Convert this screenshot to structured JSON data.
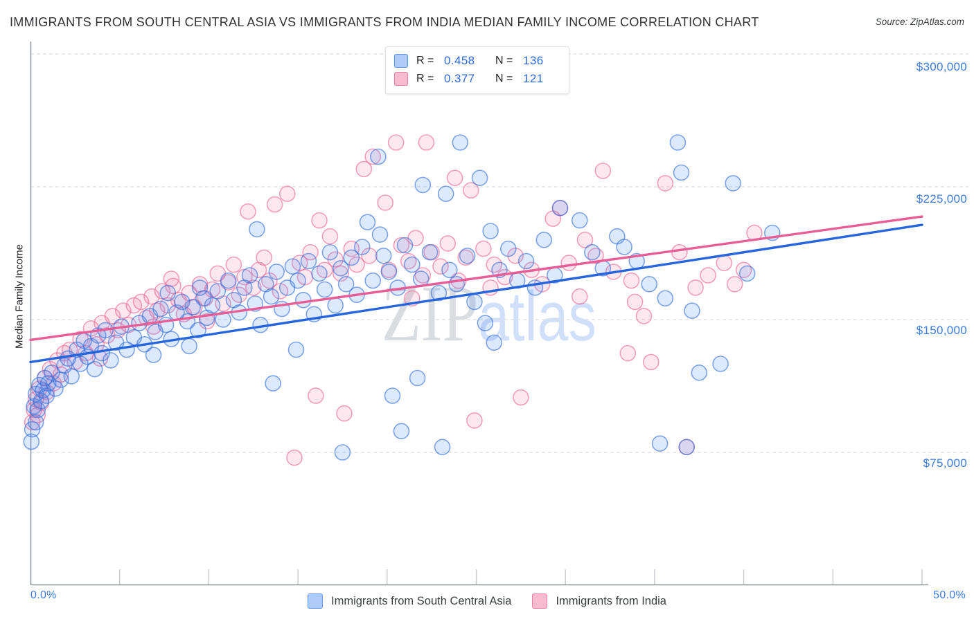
{
  "header": {
    "title": "IMMIGRANTS FROM SOUTH CENTRAL ASIA VS IMMIGRANTS FROM INDIA MEDIAN FAMILY INCOME CORRELATION CHART",
    "source": "Source: ZipAtlas.com"
  },
  "stats_box": {
    "rows": [
      {
        "r_label": "R =",
        "r_value": "0.458",
        "n_label": "N =",
        "n_value": "136",
        "swatch_fill": "#AECBFA",
        "swatch_border": "#5E97F6"
      },
      {
        "r_label": "R =",
        "r_value": "0.377",
        "n_label": "N =",
        "n_value": "121",
        "swatch_fill": "#F8BBD0",
        "swatch_border": "#F07DA8"
      }
    ]
  },
  "y_axis": {
    "title": "Median Family Income",
    "tick_labels": [
      "$300,000",
      "$225,000",
      "$150,000",
      "$75,000"
    ],
    "tick_values": [
      300000,
      225000,
      150000,
      75000
    ]
  },
  "x_axis": {
    "min_label": "0.0%",
    "max_label": "50.0%",
    "min_pct": 0,
    "max_pct": 50,
    "tick_step_pct": 5
  },
  "legend": {
    "items": [
      {
        "label": "Immigrants from South Central Asia",
        "swatch_fill": "#AECBFA",
        "swatch_border": "#5E97F6"
      },
      {
        "label": "Immigrants from India",
        "swatch_fill": "#F8BBD0",
        "swatch_border": "#F07DA8"
      }
    ]
  },
  "watermark": {
    "part1": "ZIP",
    "part2": "atlas"
  },
  "chart_data": {
    "type": "scatter",
    "title": "Immigrants from South Central Asia vs Immigrants from India Median Family Income",
    "xlabel": "",
    "ylabel": "Median Family Income",
    "x_range_pct": [
      0,
      50
    ],
    "y_range_dollars": [
      0,
      307000
    ],
    "grid": "horizontal-dashed",
    "legend_position": "bottom-center",
    "series": [
      {
        "name": "Immigrants from South Central Asia",
        "R": 0.458,
        "N": 136,
        "point_fill": "rgba(66,133,244,0.18)",
        "point_stroke": "rgba(48,109,215,0.60)",
        "trend_color": "#2566DE",
        "trend": {
          "pct0": 0,
          "value0": 126000,
          "pct1": 50,
          "value1": 203500
        },
        "points_pct_income": [
          [
            0.05,
            81000
          ],
          [
            0.1,
            88000
          ],
          [
            0.2,
            101000
          ],
          [
            0.3,
            92000
          ],
          [
            0.3,
            108000
          ],
          [
            0.4,
            99000
          ],
          [
            0.5,
            113000
          ],
          [
            0.6,
            104000
          ],
          [
            0.7,
            110000
          ],
          [
            0.8,
            117000
          ],
          [
            0.9,
            107000
          ],
          [
            1.0,
            114000
          ],
          [
            1.2,
            120000
          ],
          [
            1.4,
            111000
          ],
          [
            1.7,
            116000
          ],
          [
            1.9,
            124000
          ],
          [
            2.1,
            128000
          ],
          [
            2.3,
            118000
          ],
          [
            2.6,
            133000
          ],
          [
            2.8,
            125000
          ],
          [
            3.0,
            138000
          ],
          [
            3.2,
            129000
          ],
          [
            3.4,
            135000
          ],
          [
            3.6,
            122000
          ],
          [
            3.8,
            141000
          ],
          [
            4.0,
            131000
          ],
          [
            4.2,
            144000
          ],
          [
            4.5,
            127000
          ],
          [
            4.8,
            137000
          ],
          [
            5.1,
            146000
          ],
          [
            5.4,
            133000
          ],
          [
            5.8,
            140000
          ],
          [
            6.1,
            148000
          ],
          [
            6.4,
            136000
          ],
          [
            6.7,
            152000
          ],
          [
            7.0,
            143000
          ],
          [
            7.3,
            156000
          ],
          [
            7.6,
            147000
          ],
          [
            7.9,
            139000
          ],
          [
            8.2,
            154000
          ],
          [
            8.5,
            160000
          ],
          [
            8.8,
            149000
          ],
          [
            9.1,
            157000
          ],
          [
            9.4,
            144000
          ],
          [
            9.7,
            162000
          ],
          [
            6.9,
            130000
          ],
          [
            7.7,
            165000
          ],
          [
            8.9,
            135000
          ],
          [
            9.9,
            151000
          ],
          [
            9.5,
            168000
          ],
          [
            10.2,
            158000
          ],
          [
            10.5,
            166000
          ],
          [
            10.8,
            150000
          ],
          [
            11.1,
            172000
          ],
          [
            11.4,
            161000
          ],
          [
            11.7,
            154000
          ],
          [
            12.0,
            168000
          ],
          [
            12.3,
            175000
          ],
          [
            12.6,
            159000
          ],
          [
            12.7,
            201000
          ],
          [
            12.9,
            147000
          ],
          [
            13.2,
            170000
          ],
          [
            13.5,
            163000
          ],
          [
            13.6,
            114000
          ],
          [
            13.8,
            177000
          ],
          [
            14.1,
            156000
          ],
          [
            14.4,
            168000
          ],
          [
            14.7,
            180000
          ],
          [
            15.0,
            172000
          ],
          [
            15.3,
            161000
          ],
          [
            15.6,
            183000
          ],
          [
            15.9,
            153000
          ],
          [
            16.2,
            176000
          ],
          [
            16.5,
            167000
          ],
          [
            16.8,
            188000
          ],
          [
            17.1,
            158000
          ],
          [
            17.4,
            179000
          ],
          [
            17.5,
            75000
          ],
          [
            17.7,
            170000
          ],
          [
            18.0,
            185000
          ],
          [
            18.3,
            164000
          ],
          [
            18.6,
            191000
          ],
          [
            18.9,
            205000
          ],
          [
            14.9,
            133000
          ],
          [
            19.5,
            242000
          ],
          [
            19.6,
            198000
          ],
          [
            20.3,
            107000
          ],
          [
            20.8,
            87000
          ],
          [
            21.7,
            117000
          ],
          [
            22.0,
            226000
          ],
          [
            23.3,
            221000
          ],
          [
            24.1,
            250000
          ],
          [
            19.2,
            172000
          ],
          [
            19.8,
            186000
          ],
          [
            20.1,
            177000
          ],
          [
            20.6,
            168000
          ],
          [
            21.0,
            192000
          ],
          [
            21.4,
            181000
          ],
          [
            21.9,
            173000
          ],
          [
            22.4,
            188000
          ],
          [
            22.9,
            165000
          ],
          [
            23.5,
            178000
          ],
          [
            23.9,
            170000
          ],
          [
            23.1,
            78000
          ],
          [
            24.5,
            186000
          ],
          [
            25.2,
            230000
          ],
          [
            25.8,
            200000
          ],
          [
            26.3,
            178000
          ],
          [
            26.8,
            190000
          ],
          [
            27.3,
            172000
          ],
          [
            27.8,
            183000
          ],
          [
            28.3,
            168000
          ],
          [
            28.8,
            195000
          ],
          [
            29.4,
            175000
          ],
          [
            29.7,
            213000
          ],
          [
            24.9,
            160000
          ],
          [
            25.5,
            148000
          ],
          [
            26.0,
            137000
          ],
          [
            30.8,
            206000
          ],
          [
            31.5,
            188000
          ],
          [
            32.1,
            179000
          ],
          [
            32.9,
            197000
          ],
          [
            33.3,
            191000
          ],
          [
            34.0,
            183000
          ],
          [
            34.7,
            170000
          ],
          [
            35.3,
            80000
          ],
          [
            35.6,
            162000
          ],
          [
            36.3,
            250000
          ],
          [
            36.5,
            233000
          ],
          [
            36.8,
            78000
          ],
          [
            37.1,
            155000
          ],
          [
            37.5,
            120000
          ],
          [
            38.7,
            125000
          ],
          [
            39.4,
            227000
          ],
          [
            40.2,
            176000
          ],
          [
            41.6,
            199000
          ]
        ]
      },
      {
        "name": "Immigrants from India",
        "R": 0.377,
        "N": 121,
        "point_fill": "rgba(240,98,146,0.15)",
        "point_stroke": "rgba(238,110,155,0.65)",
        "trend_color": "#E85D96",
        "trend": {
          "pct0": 0,
          "value0": 138500,
          "pct1": 50,
          "value1": 208200
        },
        "points_pct_income": [
          [
            0.1,
            92000
          ],
          [
            0.2,
            99000
          ],
          [
            0.3,
            105000
          ],
          [
            0.4,
            96000
          ],
          [
            0.5,
            111000
          ],
          [
            0.6,
            103000
          ],
          [
            0.8,
            117000
          ],
          [
            0.9,
            109000
          ],
          [
            1.1,
            122000
          ],
          [
            1.3,
            114000
          ],
          [
            1.5,
            127000
          ],
          [
            1.7,
            119000
          ],
          [
            1.9,
            131000
          ],
          [
            2.2,
            133000
          ],
          [
            2.5,
            126000
          ],
          [
            2.8,
            139000
          ],
          [
            3.1,
            131000
          ],
          [
            3.4,
            145000
          ],
          [
            3.7,
            136000
          ],
          [
            4.0,
            148000
          ],
          [
            4.3,
            141000
          ],
          [
            4.6,
            152000
          ],
          [
            4.9,
            144000
          ],
          [
            5.2,
            155000
          ],
          [
            5.5,
            147000
          ],
          [
            5.8,
            158000
          ],
          [
            3.9,
            128000
          ],
          [
            6.2,
            160000
          ],
          [
            6.5,
            151000
          ],
          [
            6.8,
            163000
          ],
          [
            7.1,
            155000
          ],
          [
            7.4,
            166000
          ],
          [
            7.7,
            158000
          ],
          [
            8.0,
            169000
          ],
          [
            8.3,
            161000
          ],
          [
            8.6,
            153000
          ],
          [
            8.9,
            165000
          ],
          [
            9.2,
            157000
          ],
          [
            9.5,
            170000
          ],
          [
            9.8,
            162000
          ],
          [
            6.9,
            146000
          ],
          [
            7.9,
            173000
          ],
          [
            9.9,
            149000
          ],
          [
            10.2,
            167000
          ],
          [
            10.5,
            176000
          ],
          [
            10.8,
            159000
          ],
          [
            11.1,
            171000
          ],
          [
            11.4,
            181000
          ],
          [
            11.7,
            164000
          ],
          [
            12.0,
            174000
          ],
          [
            12.2,
            211000
          ],
          [
            12.5,
            168000
          ],
          [
            12.8,
            178000
          ],
          [
            13.1,
            185000
          ],
          [
            13.4,
            172000
          ],
          [
            13.7,
            215000
          ],
          [
            14.0,
            166000
          ],
          [
            14.4,
            221000
          ],
          [
            14.8,
            72000
          ],
          [
            15.1,
            182000
          ],
          [
            15.4,
            174000
          ],
          [
            15.7,
            188000
          ],
          [
            16.0,
            107000
          ],
          [
            16.2,
            206000
          ],
          [
            16.5,
            178000
          ],
          [
            16.8,
            197000
          ],
          [
            17.1,
            184000
          ],
          [
            17.4,
            176000
          ],
          [
            17.6,
            97000
          ],
          [
            18.0,
            190000
          ],
          [
            18.3,
            181000
          ],
          [
            18.7,
            235000
          ],
          [
            19.0,
            186000
          ],
          [
            19.2,
            242000
          ],
          [
            19.9,
            216000
          ],
          [
            20.5,
            250000
          ],
          [
            22.2,
            250000
          ],
          [
            23.8,
            230000
          ],
          [
            24.7,
            223000
          ],
          [
            20.1,
            178000
          ],
          [
            20.8,
            192000
          ],
          [
            21.2,
            183000
          ],
          [
            21.6,
            196000
          ],
          [
            22.0,
            175000
          ],
          [
            22.5,
            188000
          ],
          [
            23.0,
            180000
          ],
          [
            23.4,
            193000
          ],
          [
            24.0,
            172000
          ],
          [
            24.4,
            185000
          ],
          [
            24.9,
            93000
          ],
          [
            21.4,
            162000
          ],
          [
            25.4,
            190000
          ],
          [
            26.0,
            181000
          ],
          [
            26.6,
            174000
          ],
          [
            27.2,
            186000
          ],
          [
            27.5,
            106000
          ],
          [
            28.1,
            178000
          ],
          [
            28.7,
            170000
          ],
          [
            29.3,
            207000
          ],
          [
            29.7,
            213000
          ],
          [
            30.2,
            182000
          ],
          [
            31.1,
            195000
          ],
          [
            31.7,
            186000
          ],
          [
            32.1,
            234000
          ],
          [
            25.8,
            168000
          ],
          [
            30.8,
            163000
          ],
          [
            32.7,
            177000
          ],
          [
            33.5,
            131000
          ],
          [
            33.7,
            172000
          ],
          [
            33.9,
            160000
          ],
          [
            34.8,
            126000
          ],
          [
            35.6,
            227000
          ],
          [
            36.4,
            188000
          ],
          [
            36.8,
            78000
          ],
          [
            37.3,
            168000
          ],
          [
            38.0,
            175000
          ],
          [
            38.9,
            182000
          ],
          [
            39.5,
            170000
          ],
          [
            40.0,
            178000
          ],
          [
            40.6,
            199000
          ],
          [
            34.4,
            152000
          ]
        ]
      }
    ]
  }
}
